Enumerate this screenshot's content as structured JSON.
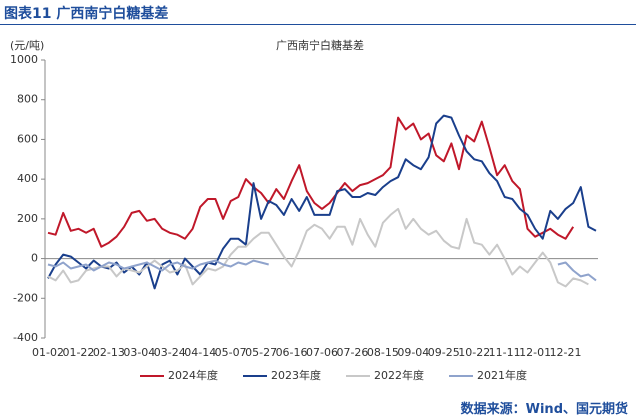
{
  "header": {
    "title": "图表11  广西南宁白糖基差"
  },
  "source": "数据来源：Wind、国元期货",
  "chart_data": {
    "type": "line",
    "title": "广西南宁白糖基差",
    "y_label": "(元/吨)",
    "categories": [
      "01-02",
      null,
      null,
      null,
      "01-22",
      null,
      null,
      null,
      "02-13",
      null,
      null,
      null,
      "03-04",
      null,
      null,
      null,
      "03-24",
      null,
      null,
      null,
      "04-14",
      null,
      null,
      null,
      "05-07",
      null,
      null,
      null,
      "05-27",
      null,
      null,
      null,
      "06-16",
      null,
      null,
      null,
      "07-06",
      null,
      null,
      null,
      "07-26",
      null,
      null,
      null,
      "08-15",
      null,
      null,
      null,
      "09-04",
      null,
      null,
      null,
      "09-25",
      null,
      null,
      null,
      "10-22",
      null,
      null,
      null,
      "11-11",
      null,
      null,
      null,
      "12-01",
      null,
      null,
      null,
      "12-21",
      null,
      null,
      null,
      null
    ],
    "ylim": [
      -400,
      1000
    ],
    "yticks": [
      -400,
      -200,
      0,
      200,
      400,
      600,
      800,
      1000
    ],
    "series": [
      {
        "name": "2024年度",
        "color": "#c0182a",
        "values": [
          130,
          120,
          230,
          140,
          150,
          130,
          150,
          60,
          80,
          110,
          160,
          230,
          240,
          190,
          200,
          150,
          130,
          120,
          100,
          150,
          260,
          300,
          300,
          200,
          290,
          310,
          400,
          360,
          330,
          280,
          350,
          300,
          390,
          470,
          340,
          280,
          250,
          280,
          330,
          380,
          340,
          370,
          380,
          400,
          420,
          460,
          710,
          650,
          680,
          600,
          630,
          520,
          490,
          580,
          450,
          620,
          590,
          690,
          560,
          420,
          470,
          390,
          350,
          150,
          110,
          130,
          150,
          120,
          100,
          160,
          null,
          null,
          null
        ]
      },
      {
        "name": "2023年度",
        "color": "#1a3f8c",
        "values": [
          -100,
          -30,
          20,
          10,
          -20,
          -50,
          -10,
          -40,
          -50,
          -20,
          -70,
          -40,
          -80,
          -20,
          -150,
          -30,
          -10,
          -80,
          0,
          -40,
          -80,
          -20,
          -30,
          50,
          100,
          100,
          70,
          380,
          200,
          290,
          270,
          220,
          300,
          240,
          310,
          220,
          220,
          220,
          340,
          350,
          310,
          310,
          330,
          320,
          360,
          390,
          410,
          500,
          470,
          450,
          510,
          680,
          720,
          710,
          620,
          540,
          500,
          490,
          430,
          390,
          310,
          300,
          250,
          220,
          150,
          100,
          240,
          200,
          250,
          280,
          360,
          160,
          140
        ]
      },
      {
        "name": "2022年度",
        "color": "#c8c8c8",
        "values": [
          -90,
          -110,
          -60,
          -120,
          -110,
          -60,
          -50,
          -40,
          -40,
          -90,
          -50,
          -60,
          -70,
          -40,
          -10,
          -40,
          -70,
          -60,
          -30,
          -130,
          -90,
          -50,
          -60,
          -40,
          20,
          60,
          60,
          100,
          130,
          130,
          70,
          10,
          -40,
          40,
          140,
          170,
          150,
          100,
          160,
          160,
          70,
          200,
          120,
          60,
          180,
          220,
          250,
          150,
          200,
          150,
          120,
          140,
          90,
          60,
          50,
          200,
          80,
          70,
          20,
          70,
          0,
          -80,
          -40,
          -70,
          -20,
          30,
          -20,
          -120,
          -140,
          -100,
          -110,
          -130,
          null
        ]
      },
      {
        "name": "2021年度",
        "color": "#8fa3cc",
        "values": [
          -30,
          -40,
          -20,
          -50,
          -40,
          -30,
          -60,
          -40,
          -20,
          -30,
          -50,
          -40,
          -30,
          -20,
          -40,
          -60,
          -30,
          -20,
          -40,
          -50,
          -30,
          -20,
          -10,
          -30,
          -40,
          -20,
          -30,
          -10,
          -20,
          -30,
          null,
          null,
          null,
          null,
          null,
          null,
          null,
          null,
          null,
          null,
          null,
          null,
          null,
          null,
          null,
          null,
          null,
          null,
          null,
          null,
          null,
          null,
          null,
          null,
          null,
          null,
          null,
          null,
          null,
          null,
          null,
          null,
          null,
          null,
          null,
          null,
          null,
          -30,
          -20,
          -60,
          -90,
          -80,
          -110
        ]
      }
    ]
  }
}
